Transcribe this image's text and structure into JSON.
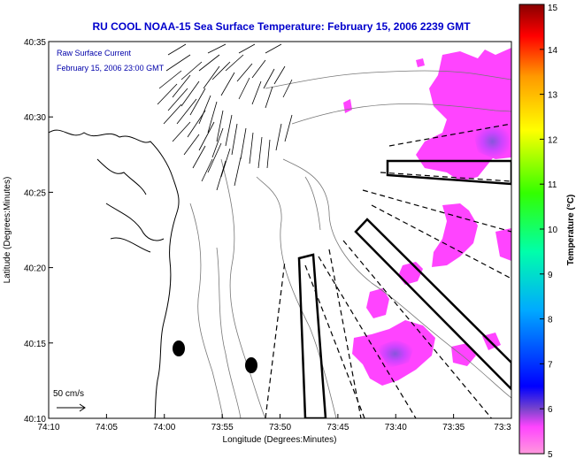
{
  "header": {
    "title": "RU COOL  NOAA-15  Sea Surface Temperature:  February 15, 2006 2239 GMT"
  },
  "legend": {
    "current_line1": "Raw Surface Current",
    "current_line2": "February 15, 2006 23:00 GMT",
    "scale_label": "50 cm/s"
  },
  "colorbar": {
    "label": "Temperature (°C)",
    "ticks": [
      "5",
      "6",
      "7",
      "8",
      "9",
      "10",
      "11",
      "12",
      "13",
      "14",
      "15"
    ],
    "min": 5,
    "max": 15,
    "colors": [
      "#ff66cc",
      "#ff44ff",
      "#6644cc",
      "#0000ff",
      "#00bbff",
      "#00ffaa",
      "#44ff00",
      "#ffff00",
      "#ffaa00",
      "#ff0000",
      "#880000"
    ]
  },
  "chart_data": {
    "type": "heatmap",
    "title": "RU COOL  NOAA-15  Sea Surface Temperature:  February 15, 2006 2239 GMT",
    "xlabel": "Longitude (Degrees:Minutes)",
    "ylabel": "Latitude (Degrees:Minutes)",
    "x_ticks": [
      "74:10",
      "74:05",
      "74:00",
      "73:55",
      "73:50",
      "73:45",
      "73:40",
      "73:35",
      "73:3"
    ],
    "y_ticks": [
      "40:35",
      "40:30",
      "40:25",
      "40:20",
      "40:15",
      "40:10"
    ],
    "x_range_minutes": [
      -4450,
      -4410
    ],
    "y_range_minutes": [
      2410,
      2435
    ],
    "grid": false,
    "sst_patches_degC": [
      {
        "lon_min": -4416.5,
        "lat_min": 2430.5,
        "value": 5.6
      },
      {
        "lon_min": -4413.5,
        "lat_min": 2431.5,
        "value": 5.5
      },
      {
        "lon_min": -4411.5,
        "lat_min": 2428.0,
        "value": 6.2
      },
      {
        "lon_min": -4414.0,
        "lat_min": 2427.5,
        "value": 5.3
      },
      {
        "lon_min": -4416.0,
        "lat_min": 2421.5,
        "value": 5.2
      },
      {
        "lon_min": -4417.5,
        "lat_min": 2420.0,
        "value": 5.2
      },
      {
        "lon_min": -4420.0,
        "lat_min": 2417.5,
        "value": 5.1
      },
      {
        "lon_min": -4419.0,
        "lat_min": 2413.5,
        "value": 5.6
      },
      {
        "lon_min": -4415.0,
        "lat_min": 2419.0,
        "value": 5.1
      }
    ]
  }
}
